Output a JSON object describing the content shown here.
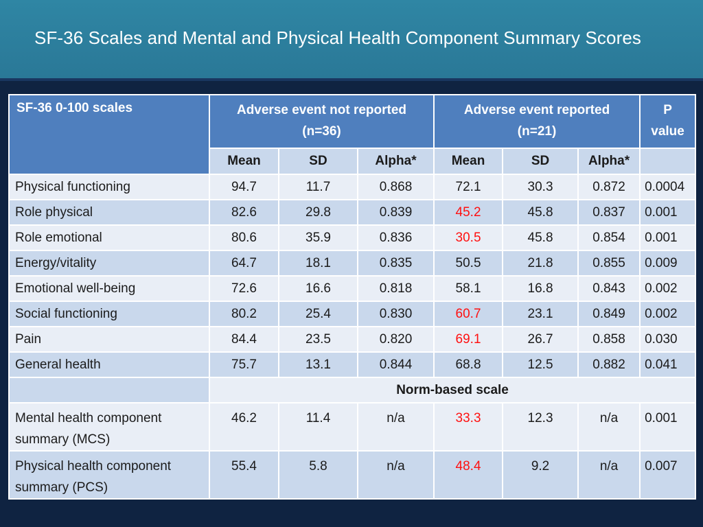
{
  "title": "SF-36 Scales and Mental and Physical Health Component Summary Scores",
  "header": {
    "scales_label": "SF-36 0-100 scales",
    "group1_line1": "Adverse event not reported",
    "group1_line2": "(n=36)",
    "group2_line1": "Adverse event reported",
    "group2_line2": "(n=21)",
    "p_line1": "P",
    "p_line2": "value",
    "mean": "Mean",
    "sd": "SD",
    "alpha": "Alpha*"
  },
  "rows": [
    {
      "label": "Physical functioning",
      "v": [
        "94.7",
        "11.7",
        "0.868",
        "72.1",
        "30.3",
        "0.872",
        "0.0004"
      ]
    },
    {
      "label": "Role physical",
      "v": [
        "82.6",
        "29.8",
        "0.839",
        "45.2",
        "45.8",
        "0.837",
        "0.001"
      ]
    },
    {
      "label": "Role emotional",
      "v": [
        "80.6",
        "35.9",
        "0.836",
        "30.5",
        "45.8",
        "0.854",
        "0.001"
      ]
    },
    {
      "label": "Energy/vitality",
      "v": [
        "64.7",
        "18.1",
        "0.835",
        "50.5",
        "21.8",
        "0.855",
        "0.009"
      ]
    },
    {
      "label": "Emotional well-being",
      "v": [
        "72.6",
        "16.6",
        "0.818",
        "58.1",
        "16.8",
        "0.843",
        "0.002"
      ]
    },
    {
      "label": "Social functioning",
      "v": [
        "80.2",
        "25.4",
        "0.830",
        "60.7",
        "23.1",
        "0.849",
        "0.002"
      ]
    },
    {
      "label": "Pain",
      "v": [
        "84.4",
        "23.5",
        "0.820",
        "69.1",
        "26.7",
        "0.858",
        "0.030"
      ]
    },
    {
      "label": "General health",
      "v": [
        "75.7",
        "13.1",
        "0.844",
        "68.8",
        "12.5",
        "0.882",
        "0.041"
      ]
    }
  ],
  "norm_label": "Norm-based scale",
  "summary_rows": [
    {
      "label_line1": "Mental health component",
      "label_line2": "summary (MCS)",
      "v": [
        "46.2",
        "11.4",
        "n/a",
        "33.3",
        "12.3",
        "n/a",
        "0.001"
      ]
    },
    {
      "label_line1": "Physical health component",
      "label_line2": "summary (PCS)",
      "v": [
        "55.4",
        "5.8",
        "n/a",
        "48.4",
        "9.2",
        "n/a",
        "0.007"
      ]
    }
  ],
  "colors": {
    "highlight": "#ff1010",
    "header": "#4f7fbe",
    "title_bar": "#2f86a4"
  }
}
